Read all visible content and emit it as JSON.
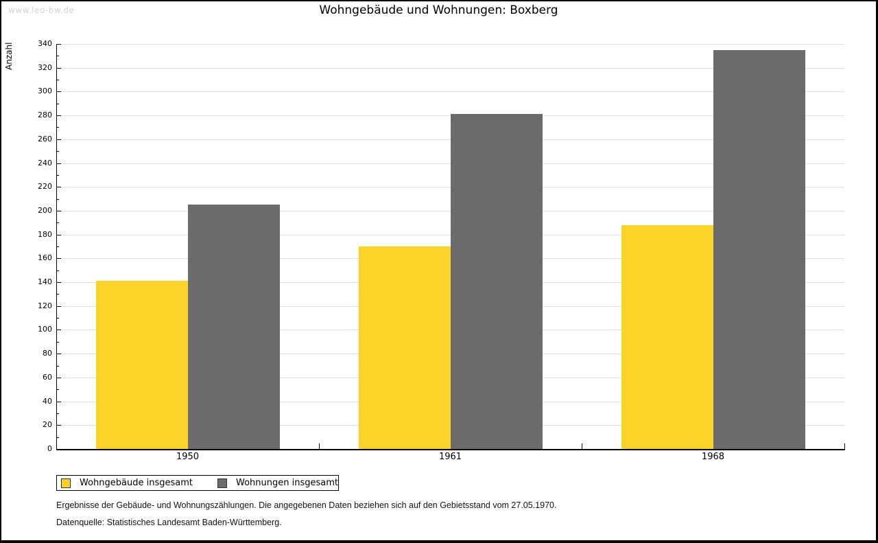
{
  "watermark": "www.leo-bw.de",
  "title": "Wohngebäude und Wohnungen: Boxberg",
  "chart_data": {
    "type": "bar",
    "categories": [
      "1950",
      "1961",
      "1968"
    ],
    "series": [
      {
        "name": "Wohngebäude insgesamt",
        "color": "#FCD32B",
        "values": [
          141,
          170,
          188
        ]
      },
      {
        "name": "Wohnungen insgesamt",
        "color": "#6B6B6B",
        "values": [
          205,
          281,
          335
        ]
      }
    ],
    "title": "Wohngebäude und Wohnungen: Boxberg",
    "xlabel": "",
    "ylabel": "Anzahl",
    "ylim": [
      0,
      340
    ],
    "ytick_step": 20,
    "minor_tick_step": 10,
    "grid": true,
    "legend_position": "bottom-left"
  },
  "footnotes": [
    "Ergebnisse der Gebäude- und Wohnungszählungen. Die angegebenen Daten beziehen sich auf den Gebietsstand vom 27.05.1970.",
    "Datenquelle: Statistisches Landesamt Baden-Württemberg."
  ],
  "colors": {
    "grid": "#E0E0E0",
    "axis": "#000000",
    "watermark": "#D4D4D4",
    "background": "#FFFFFF"
  }
}
